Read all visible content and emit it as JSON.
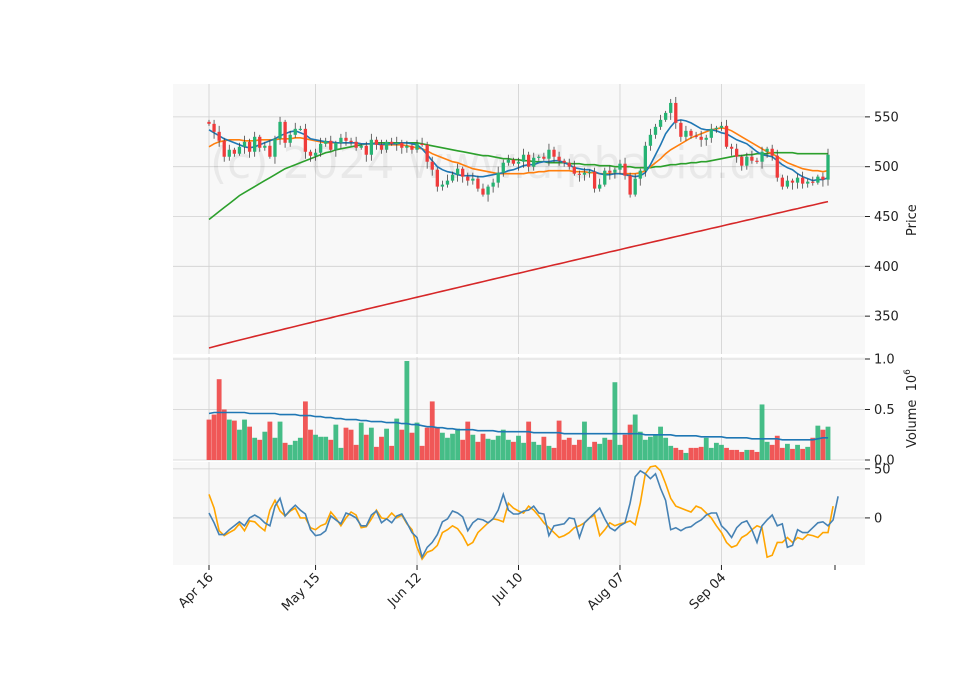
{
  "watermark": "(c) 2024 www.alphaoid.de",
  "colors": {
    "panel_bg": "#f8f8f8",
    "grid": "#d0d0d0",
    "up": "#26b373",
    "down": "#ef3b3b",
    "ma_short": "#1f77b4",
    "ma_mid": "#ff7f0e",
    "ma_long": "#2ca02c",
    "ma_200": "#d62728",
    "osc_blue": "#4682b4",
    "osc_orange": "#ffa500",
    "vol_ma": "#1f77b4"
  },
  "chart_data": {
    "type": "candlestick",
    "x_ticks": [
      "Apr 16",
      "May 15",
      "Jun 12",
      "Jul 10",
      "Aug 07",
      "Sep 04"
    ],
    "price_panel": {
      "ylabel": "Price",
      "ylim": [
        312,
        583
      ],
      "yticks": [
        350,
        400,
        450,
        500,
        550
      ],
      "closes": [
        543,
        535,
        526,
        510,
        517,
        513,
        520,
        525,
        515,
        530,
        519,
        521,
        510,
        528,
        545,
        524,
        532,
        538,
        538,
        515,
        511,
        514,
        523,
        526,
        517,
        524,
        529,
        526,
        525,
        519,
        521,
        512,
        527,
        522,
        517,
        525,
        523,
        524,
        519,
        521,
        517,
        523,
        522,
        505,
        497,
        480,
        482,
        486,
        492,
        498,
        490,
        486,
        488,
        478,
        472,
        480,
        484,
        494,
        504,
        507,
        503,
        505,
        512,
        500,
        509,
        510,
        508,
        517,
        510,
        506,
        504,
        500,
        493,
        492,
        494,
        495,
        478,
        482,
        496,
        494,
        497,
        503,
        491,
        472,
        488,
        496,
        521,
        532,
        540,
        547,
        554,
        564,
        544,
        530,
        536,
        531,
        530,
        527,
        529,
        538,
        539,
        541,
        520,
        518,
        510,
        501,
        510,
        506,
        505,
        515,
        518,
        511,
        489,
        480,
        486,
        484,
        489,
        483,
        485,
        484,
        490,
        487,
        512
      ],
      "ma_short": [
        537,
        534,
        531,
        528,
        526,
        524,
        522,
        520,
        519,
        520,
        522,
        524,
        526,
        528,
        531,
        533,
        535,
        536,
        534,
        532,
        528,
        527,
        526,
        525,
        525,
        524,
        524,
        524,
        524,
        524,
        523,
        523,
        523,
        523,
        522,
        523,
        523,
        523,
        524,
        524,
        523,
        522,
        518,
        512,
        506,
        500,
        497,
        495,
        494,
        492,
        491,
        491,
        491,
        490,
        490,
        491,
        492,
        493,
        494,
        496,
        497,
        499,
        501,
        502,
        502,
        504,
        505,
        505,
        506,
        506,
        504,
        502,
        499,
        498,
        497,
        497,
        495,
        493,
        492,
        492,
        493,
        493,
        492,
        491,
        490,
        491,
        494,
        502,
        512,
        522,
        533,
        540,
        546,
        547,
        546,
        544,
        541,
        538,
        537,
        537,
        536,
        534,
        533,
        530,
        527,
        525,
        523,
        519,
        515,
        512,
        511,
        510,
        506,
        502,
        499,
        497,
        493,
        490,
        488,
        486,
        487,
        487,
        489
      ],
      "ma_mid": [
        520,
        523,
        525,
        526,
        527,
        527,
        527,
        526,
        526,
        526,
        527,
        527,
        527,
        527,
        528,
        528,
        528,
        529,
        529,
        528,
        527,
        526,
        525,
        524,
        524,
        524,
        524,
        524,
        524,
        524,
        523,
        523,
        523,
        523,
        522,
        522,
        522,
        522,
        522,
        521,
        520,
        519,
        518,
        516,
        513,
        511,
        509,
        507,
        505,
        504,
        502,
        500,
        498,
        497,
        496,
        495,
        494,
        493,
        493,
        493,
        493,
        493,
        493,
        494,
        494,
        495,
        495,
        496,
        496,
        496,
        496,
        496,
        495,
        495,
        495,
        494,
        494,
        493,
        493,
        493,
        493,
        493,
        493,
        493,
        493,
        494,
        496,
        500,
        504,
        508,
        513,
        517,
        520,
        523,
        526,
        529,
        531,
        533,
        535,
        537,
        538,
        539,
        538,
        536,
        533,
        530,
        527,
        524,
        521,
        518,
        515,
        513,
        510,
        507,
        504,
        502,
        500,
        498,
        497,
        496,
        496,
        495,
        496
      ],
      "ma_long": [
        447,
        451,
        455,
        459,
        463,
        467,
        471,
        474,
        477,
        480,
        483,
        486,
        489,
        492,
        495,
        498,
        500,
        502,
        504,
        506,
        508,
        510,
        512,
        514,
        515,
        517,
        518,
        519,
        520,
        521,
        522,
        523,
        523,
        524,
        524,
        524,
        524,
        524,
        524,
        524,
        524,
        524,
        523,
        522,
        521,
        520,
        519,
        518,
        517,
        516,
        515,
        514,
        513,
        512,
        511,
        511,
        510,
        509,
        508,
        508,
        507,
        507,
        506,
        506,
        505,
        505,
        505,
        504,
        504,
        504,
        504,
        503,
        503,
        503,
        502,
        502,
        502,
        501,
        501,
        501,
        500,
        500,
        500,
        500,
        499,
        499,
        499,
        499,
        500,
        500,
        501,
        502,
        502,
        503,
        503,
        504,
        504,
        505,
        505,
        506,
        507,
        508,
        509,
        510,
        511,
        511,
        512,
        512,
        513,
        513,
        513,
        514,
        514,
        514,
        514,
        514,
        513,
        513,
        513,
        513,
        513,
        513,
        513
      ],
      "ma_200_range": [
        318,
        465
      ]
    },
    "volume_panel": {
      "ylabel": "Volume  10^6",
      "ylim": [
        0,
        1.0
      ],
      "yticks": [
        "0.0",
        "0.5",
        "1.0"
      ],
      "values": [
        0.4,
        0.45,
        0.8,
        0.5,
        0.4,
        0.39,
        0.3,
        0.4,
        0.33,
        0.22,
        0.2,
        0.28,
        0.38,
        0.22,
        0.38,
        0.17,
        0.15,
        0.19,
        0.22,
        0.58,
        0.3,
        0.25,
        0.23,
        0.23,
        0.2,
        0.35,
        0.12,
        0.32,
        0.3,
        0.15,
        0.37,
        0.25,
        0.32,
        0.13,
        0.23,
        0.31,
        0.14,
        0.41,
        0.3,
        0.98,
        0.27,
        0.37,
        0.14,
        0.32,
        0.58,
        0.32,
        0.27,
        0.22,
        0.26,
        0.31,
        0.2,
        0.38,
        0.25,
        0.18,
        0.26,
        0.21,
        0.2,
        0.24,
        0.3,
        0.2,
        0.18,
        0.24,
        0.17,
        0.38,
        0.18,
        0.15,
        0.23,
        0.14,
        0.12,
        0.39,
        0.2,
        0.22,
        0.15,
        0.2,
        0.38,
        0.13,
        0.18,
        0.16,
        0.22,
        0.2,
        0.77,
        0.15,
        0.25,
        0.35,
        0.45,
        0.28,
        0.2,
        0.23,
        0.25,
        0.33,
        0.22,
        0.14,
        0.12,
        0.1,
        0.07,
        0.12,
        0.12,
        0.13,
        0.22,
        0.12,
        0.17,
        0.15,
        0.12,
        0.1,
        0.1,
        0.08,
        0.1,
        0.1,
        0.08,
        0.55,
        0.18,
        0.15,
        0.24,
        0.12,
        0.16,
        0.11,
        0.15,
        0.11,
        0.13,
        0.22,
        0.34,
        0.3,
        0.33
      ],
      "ma": [
        0.46,
        0.47,
        0.47,
        0.47,
        0.47,
        0.47,
        0.47,
        0.47,
        0.46,
        0.46,
        0.46,
        0.46,
        0.46,
        0.46,
        0.45,
        0.45,
        0.45,
        0.45,
        0.44,
        0.44,
        0.44,
        0.43,
        0.43,
        0.42,
        0.42,
        0.41,
        0.41,
        0.4,
        0.4,
        0.4,
        0.39,
        0.39,
        0.38,
        0.38,
        0.38,
        0.37,
        0.37,
        0.37,
        0.36,
        0.36,
        0.35,
        0.35,
        0.34,
        0.33,
        0.33,
        0.32,
        0.32,
        0.31,
        0.31,
        0.3,
        0.3,
        0.3,
        0.3,
        0.29,
        0.29,
        0.29,
        0.29,
        0.28,
        0.28,
        0.28,
        0.28,
        0.28,
        0.28,
        0.28,
        0.27,
        0.27,
        0.27,
        0.27,
        0.27,
        0.27,
        0.26,
        0.26,
        0.26,
        0.26,
        0.26,
        0.26,
        0.26,
        0.26,
        0.26,
        0.26,
        0.26,
        0.26,
        0.26,
        0.26,
        0.26,
        0.26,
        0.25,
        0.25,
        0.25,
        0.25,
        0.25,
        0.25,
        0.24,
        0.24,
        0.24,
        0.24,
        0.24,
        0.23,
        0.23,
        0.23,
        0.23,
        0.23,
        0.22,
        0.22,
        0.22,
        0.22,
        0.22,
        0.21,
        0.21,
        0.21,
        0.21,
        0.21,
        0.21,
        0.2,
        0.2,
        0.2,
        0.2,
        0.2,
        0.2,
        0.2,
        0.21,
        0.22,
        0.22
      ]
    },
    "oscillator_panel": {
      "ylim": [
        -48,
        57
      ],
      "yticks": [
        0,
        50
      ],
      "blue": [
        5,
        -5,
        -17,
        -17,
        -12,
        -8,
        -4,
        -8,
        0,
        3,
        0,
        -5,
        -8,
        12,
        20,
        2,
        8,
        13,
        8,
        4,
        -12,
        -18,
        -17,
        -13,
        2,
        -2,
        -6,
        5,
        3,
        0,
        -8,
        -8,
        3,
        7,
        -5,
        -1,
        -5,
        2,
        4,
        -5,
        -15,
        -20,
        -40,
        -30,
        -25,
        -17,
        -4,
        -1,
        7,
        5,
        1,
        -13,
        -5,
        -1,
        -2,
        -5,
        -1,
        8,
        24,
        8,
        4,
        4,
        7,
        8,
        12,
        5,
        4,
        -18,
        -8,
        -7,
        -6,
        0,
        -1,
        -20,
        -5,
        0,
        5,
        10,
        -1,
        -10,
        -13,
        -8,
        -5,
        15,
        42,
        48,
        45,
        40,
        45,
        30,
        18,
        -12,
        -10,
        -13,
        -10,
        -9,
        -5,
        -2,
        3,
        5,
        5,
        -8,
        -13,
        -20,
        -10,
        -5,
        -3,
        -12,
        -25,
        -8,
        -2,
        3,
        -8,
        -6,
        -30,
        -28,
        -12,
        -15,
        -15,
        -10,
        -5,
        -4,
        -8,
        -2,
        22
      ],
      "orange": [
        24,
        10,
        -13,
        -18,
        -15,
        -12,
        -6,
        -13,
        -3,
        -4,
        -9,
        -13,
        8,
        18,
        7,
        2,
        7,
        10,
        0,
        0,
        -10,
        -12,
        -8,
        -6,
        6,
        0,
        -8,
        0,
        6,
        3,
        -10,
        -9,
        -1,
        8,
        0,
        -1,
        5,
        0,
        3,
        -6,
        -12,
        -30,
        -42,
        -35,
        -33,
        -28,
        -15,
        -12,
        -8,
        -11,
        -18,
        -28,
        -25,
        -15,
        -10,
        -5,
        -1,
        -2,
        -4,
        15,
        10,
        7,
        5,
        12,
        8,
        2,
        -5,
        -10,
        -15,
        -20,
        -18,
        -15,
        -10,
        -8,
        -5,
        0,
        3,
        -18,
        -12,
        -5,
        -8,
        -6,
        -5,
        -3,
        -7,
        15,
        45,
        52,
        53,
        48,
        35,
        20,
        12,
        10,
        8,
        6,
        12,
        10,
        5,
        0,
        -8,
        -15,
        -25,
        -30,
        -28,
        -20,
        -17,
        -12,
        -8,
        -10,
        -40,
        -38,
        -25,
        -25,
        -20,
        -25,
        -20,
        -22,
        -17,
        -18,
        -20,
        -15,
        -15,
        12
      ]
    }
  }
}
